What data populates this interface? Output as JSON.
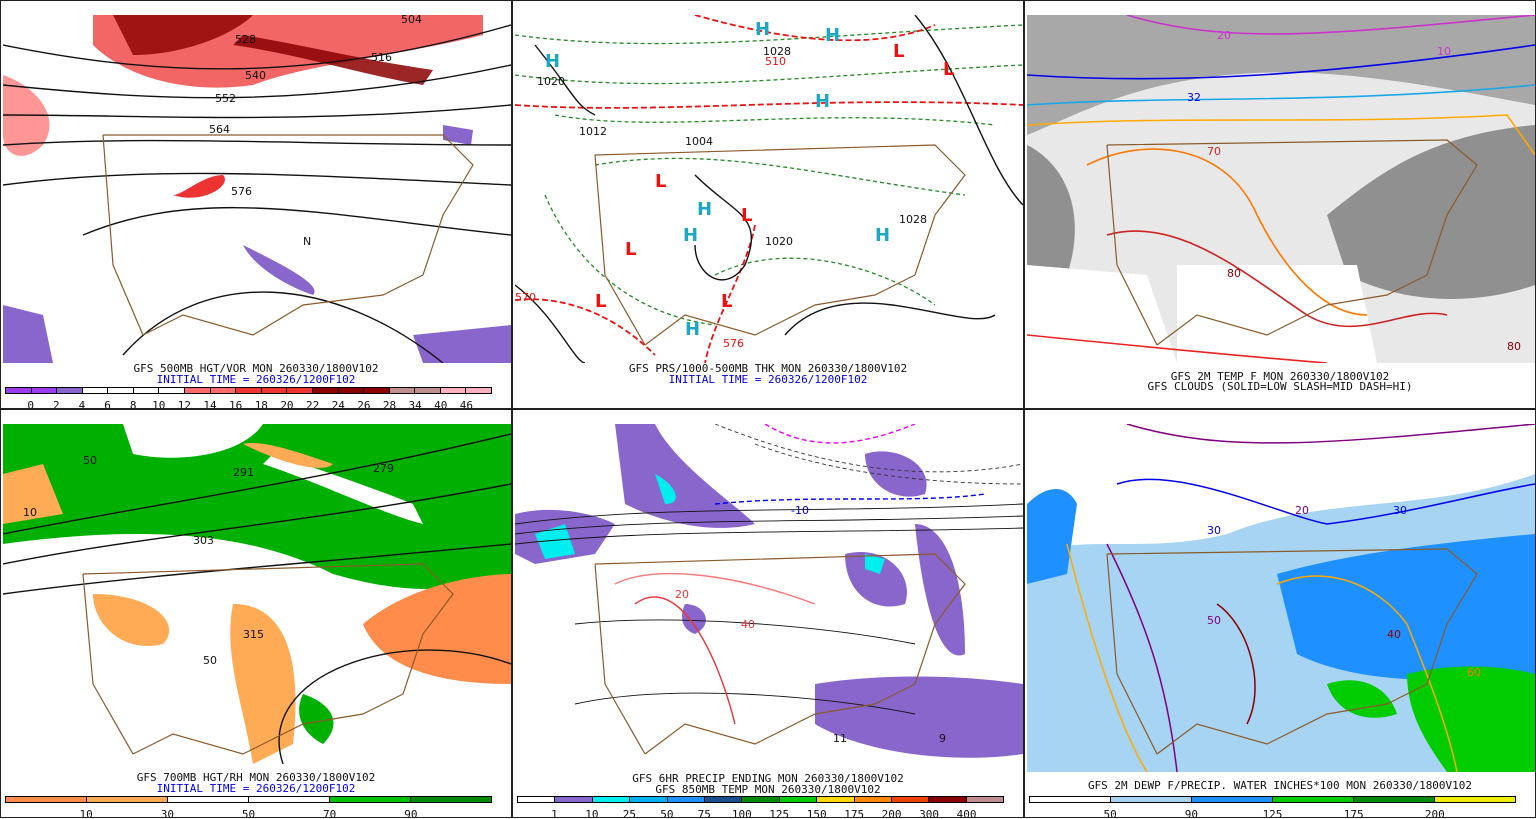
{
  "panels": [
    {
      "id": "p1",
      "caption1": "GFS 500MB HGT/VOR MON 260330/1800V102",
      "caption2": "INITIAL TIME = 260326/1200F102",
      "colorbar": {
        "colors": [
          "#9a3cf0",
          "#9a3cf0",
          "#8866cc",
          "#ffffff",
          "#ffffff",
          "#ffffff",
          "#ffffff",
          "#ff6a6a",
          "#ff6a6a",
          "#ee3333",
          "#ee3333",
          "#ee3333",
          "#8b0000",
          "#8b0000",
          "#8b0000",
          "#bf8f8f",
          "#bf8f8f",
          "#ffb0c0",
          "#ffb0c0"
        ],
        "labels": [
          "0",
          "2",
          "4",
          "6",
          "8",
          "10",
          "12",
          "14",
          "16",
          "18",
          "20",
          "22",
          "24",
          "26",
          "28",
          "34",
          "40",
          "46"
        ]
      },
      "map_labels": [
        "504",
        "516",
        "528",
        "540",
        "552",
        "564",
        "576",
        "N"
      ]
    },
    {
      "id": "p2",
      "caption1": "GFS PRS/1000-500MB THK MON 260330/1800V102",
      "caption2": "INITIAL TIME = 260326/1200F102",
      "map_labels": [
        "H",
        "L",
        "1020",
        "1012",
        "1004",
        "1028",
        "570",
        "576",
        "510"
      ]
    },
    {
      "id": "p3",
      "caption1": "GFS 2M TEMP F MON 260330/1800V102",
      "caption2": "GFS CLOUDS (SOLID=LOW SLASH=MID DASH=HI)",
      "map_labels": [
        "20",
        "32",
        "70",
        "80",
        "10"
      ]
    },
    {
      "id": "p4",
      "caption1": "GFS 700MB HGT/RH MON 260330/1800V102",
      "caption2": "INITIAL TIME = 260326/1200F102",
      "colorbar": {
        "colors": [
          "#ff8c4a",
          "#ffaa55",
          "#ffffff",
          "#ffffff",
          "#00c000",
          "#008a00"
        ],
        "labels": [
          "10",
          "30",
          "50",
          "70",
          "90"
        ]
      },
      "map_labels": [
        "50",
        "303",
        "291",
        "279",
        "315",
        "10"
      ]
    },
    {
      "id": "p5",
      "caption1": "GFS 6HR PRECIP ENDING MON 260330/1800V102",
      "caption2": "GFS 850MB TEMP MON 260330/1800V102",
      "colorbar": {
        "colors": [
          "#ffffff",
          "#8866cc",
          "#00eeee",
          "#00b0f0",
          "#1e90ff",
          "#1a4f8f",
          "#008a00",
          "#00cc00",
          "#ffd700",
          "#ff8800",
          "#ee4400",
          "#8b0000",
          "#bf8f8f"
        ],
        "labels": [
          "1",
          "10",
          "25",
          "50",
          "75",
          "100",
          "125",
          "150",
          "175",
          "200",
          "300",
          "400"
        ]
      },
      "map_labels": [
        "-10",
        "20",
        "40",
        "11",
        "9"
      ]
    },
    {
      "id": "p6",
      "caption1": "GFS 2M DEWP F/PRECIP. WATER INCHES*100 MON 260330/1800V102",
      "colorbar": {
        "colors": [
          "#ffffff",
          "#a6d4f2",
          "#1e90ff",
          "#00cc00",
          "#008a00",
          "#eeee00"
        ],
        "labels": [
          "50",
          "90",
          "125",
          "175",
          "200"
        ]
      },
      "map_labels": [
        "20",
        "30",
        "40",
        "50",
        "60"
      ]
    }
  ]
}
